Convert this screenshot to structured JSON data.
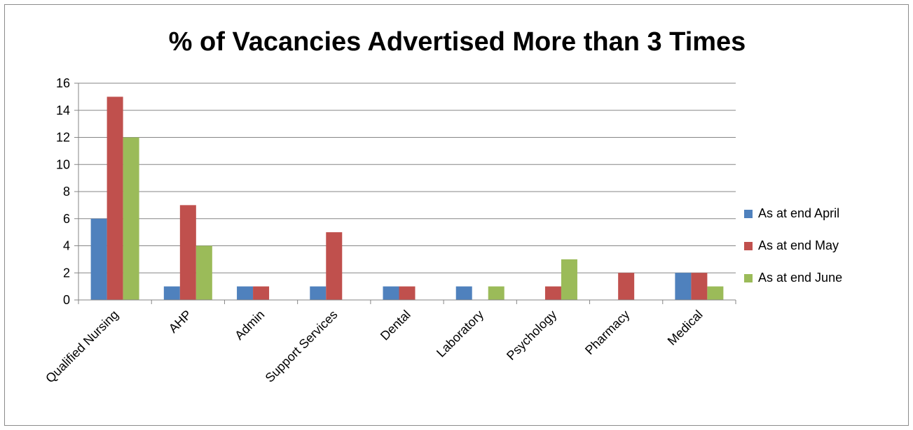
{
  "chart_data": {
    "type": "bar",
    "title": "% of Vacancies Advertised More than 3 Times",
    "xlabel": "",
    "ylabel": "",
    "categories": [
      "Qualified Nursing",
      "AHP",
      "Admin",
      "Support Services",
      "Dental",
      "Laboratory",
      "Psychology",
      "Pharmacy",
      "Medical"
    ],
    "series": [
      {
        "name": "As at end April",
        "color": "#4f81bd",
        "values": [
          6,
          1,
          1,
          1,
          1,
          1,
          0,
          0,
          2
        ]
      },
      {
        "name": "As at end May",
        "color": "#c0504d",
        "values": [
          15,
          7,
          1,
          5,
          1,
          0,
          1,
          2,
          2
        ]
      },
      {
        "name": "As at end June",
        "color": "#9bbb59",
        "values": [
          12,
          4,
          0,
          0,
          0,
          1,
          3,
          0,
          1
        ]
      }
    ],
    "ylim": [
      0,
      16
    ],
    "yticks": [
      0,
      2,
      4,
      6,
      8,
      10,
      12,
      14,
      16
    ],
    "grid": true,
    "legend_position": "right"
  }
}
